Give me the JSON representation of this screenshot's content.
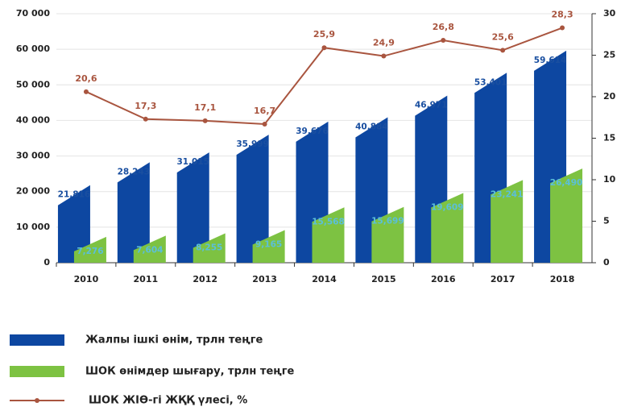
{
  "chart_data": {
    "type": "bar",
    "categories": [
      "2010",
      "2011",
      "2012",
      "2013",
      "2014",
      "2015",
      "2016",
      "2017",
      "2018"
    ],
    "series": [
      {
        "name": "Жалпы ішкі өнім, трлн теңге",
        "color": "#0d47a1",
        "type": "bar",
        "values": [
          21816,
          28243,
          31015,
          35999,
          39676,
          40884,
          46971,
          53401,
          59614
        ],
        "value_labels": [
          "21,816",
          "28,243",
          "31,015",
          "35,999",
          "39,676",
          "40,884",
          "46,971",
          "53,401",
          "59,614"
        ]
      },
      {
        "name": "ШОК өнімдер шығару, трлн теңге",
        "color": "#7dc242",
        "type": "bar",
        "values": [
          7276,
          7604,
          8255,
          9165,
          15568,
          15699,
          19609,
          23241,
          26490
        ],
        "value_labels": [
          "7,276",
          "7,604",
          "8,255",
          "9,165",
          "15,568",
          "15,699",
          "19,609",
          "23,241",
          "26,490"
        ]
      },
      {
        "name": "ШОК ЖІӨ-гі ЖҚҚ үлесі, %",
        "color": "#a9553f",
        "type": "line",
        "axis": "y2",
        "values": [
          20.6,
          17.3,
          17.1,
          16.7,
          25.9,
          24.9,
          26.8,
          25.6,
          28.3
        ],
        "value_labels": [
          "20,6",
          "17,3",
          "17,1",
          "16,7",
          "25,9",
          "24,9",
          "26,8",
          "25,6",
          "28,3"
        ]
      }
    ],
    "ylim": [
      0,
      70000
    ],
    "yticks": [
      0,
      {
        "value": 10000,
        "label": "10 000"
      },
      {
        "value": 20000,
        "label": "20 000"
      },
      {
        "value": 30000,
        "label": "30 000"
      },
      {
        "value": 40000,
        "label": "40 000"
      },
      {
        "value": 50000,
        "label": "50 000"
      },
      {
        "value": 60000,
        "label": "60 000"
      },
      {
        "value": 70000,
        "label": "70 000"
      }
    ],
    "y2lim": [
      0,
      30
    ],
    "y2ticks": [
      0,
      5,
      10,
      15,
      20,
      25,
      30
    ],
    "grid": true
  }
}
